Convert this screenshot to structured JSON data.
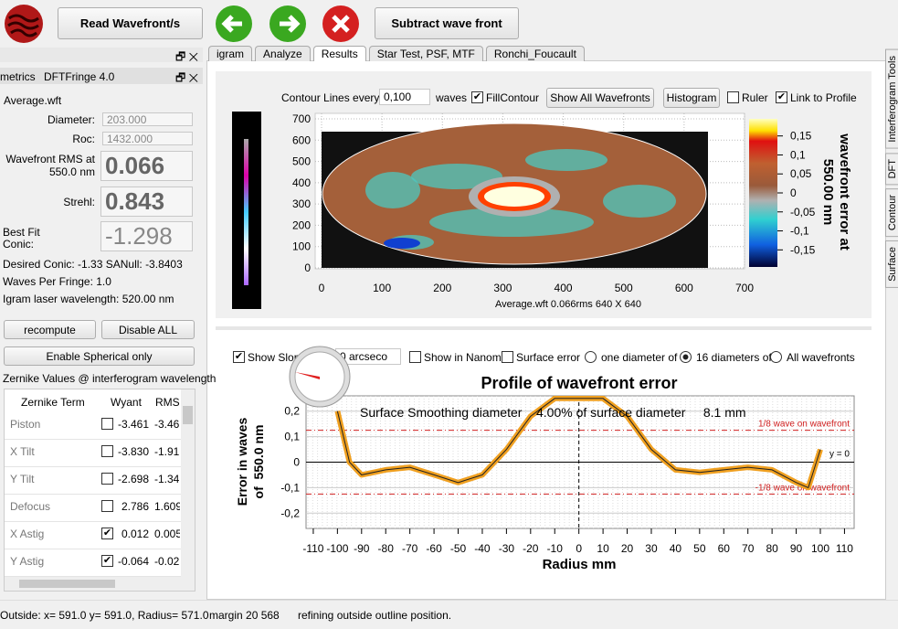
{
  "toolbar": {
    "read_button": "Read Wavefront/s",
    "subtract_button": "Subtract wave front"
  },
  "tabs": [
    "igram",
    "Analyze",
    "Results",
    "Star Test, PSF, MTF",
    "Ronchi_Foucault"
  ],
  "selected_tab": 2,
  "side_tabs": [
    "Interferogram Tools",
    "DFT",
    "Contour",
    "Surface"
  ],
  "left_panel": {
    "dock_titles": [
      "metrics",
      "DFTFringe 4.0"
    ],
    "file": "Average.wft",
    "diameter_label": "Diameter:",
    "diameter": "203.000",
    "roc_label": "Roc:",
    "roc": "1432.000",
    "rms_label": [
      "Wavefront RMS at",
      "550.0 nm"
    ],
    "rms": "0.066",
    "strehl_label": "Strehl:",
    "strehl": "0.843",
    "conic_label": [
      "Best Fit",
      "Conic:"
    ],
    "conic": "-1.298",
    "desired": "Desired Conic: -1.33 SANull: -3.8403",
    "waves_per_fringe": "Waves Per Fringe: 1.0",
    "laser": "Igram laser wavelength: 520.00 nm",
    "recompute": "recompute",
    "disable_all": "Disable ALL",
    "enable_spherical": "Enable Spherical only",
    "zernike_title": "Zernike Values @ interferogram wavelength",
    "zernike_header": [
      "Zernike Term",
      "Wyant",
      "RMS"
    ],
    "zernike_rows": [
      [
        "Piston",
        "-3.461",
        "-3.46",
        false
      ],
      [
        "X Tilt",
        "-3.830",
        "-1.91",
        false
      ],
      [
        "Y Tilt",
        "-2.698",
        "-1.34",
        false
      ],
      [
        "Defocus",
        "2.786",
        "1.609",
        false
      ],
      [
        "X Astig",
        "0.012",
        "0.005",
        true
      ],
      [
        "Y Astig",
        "-0.064",
        "-0.02",
        true
      ]
    ]
  },
  "contour": {
    "controls": {
      "lines_every": "Contour Lines every",
      "step": "0,100",
      "waves": "waves",
      "fill": "FillContour",
      "fill_checked": true,
      "show_all": "Show All Wavefronts",
      "histogram": "Histogram",
      "ruler": "Ruler",
      "ruler_checked": false,
      "link": "Link to Profile",
      "link_checked": true
    },
    "xlim": [
      0,
      700
    ],
    "ylim": [
      0,
      700
    ],
    "xticks": [
      0,
      100,
      200,
      300,
      400,
      500,
      600,
      700
    ],
    "yticks": [
      0,
      100,
      200,
      300,
      400,
      500,
      600,
      700
    ],
    "caption": "Average.wft  0.066rms 640 X 640",
    "colorbar_lim": [
      -0.195,
      0.195
    ],
    "colorbar_ticks": [
      {
        "value": 0.15,
        "label": "0,15"
      },
      {
        "value": 0.1,
        "label": "0,1"
      },
      {
        "value": 0.05,
        "label": "0,05"
      },
      {
        "value": 0,
        "label": "0"
      },
      {
        "value": -0.05,
        "label": "-0,05"
      },
      {
        "value": -0.1,
        "label": "-0,1"
      },
      {
        "value": -0.15,
        "label": "-0,15"
      }
    ],
    "colorbar_label": [
      "wavefront error at",
      "550.00 nm"
    ]
  },
  "profile": {
    "controls": {
      "show_slope": "Show Slop",
      "slope_checked": true,
      "arcsec": "0 arcseco",
      "nanometers": "Show in Nanome",
      "nanometers_checked": false,
      "surface": "Surface error",
      "surface_checked": false,
      "radios": [
        "one diameter of",
        "16 diameters of",
        "All wavefronts"
      ],
      "radio_selected": 1
    },
    "title": "Profile of wavefront error",
    "annotation": "Surface Smoothing diameter    4.00% of surface diameter     8.1 mm",
    "ref_lines": [
      {
        "value": 0.125,
        "label": "1/8 wave on wavefront"
      },
      {
        "value": -0.125,
        "label": "-1/8 wave on wavefront"
      }
    ],
    "zero_label": "y = 0",
    "ylabel": [
      "Error in waves",
      "of  550.0 nm"
    ],
    "xlabel": "Radius mm",
    "xlim": [
      -113,
      114
    ],
    "ylim": [
      -0.26,
      0.26
    ],
    "xticks": [
      -110,
      -100,
      -90,
      -80,
      -70,
      -60,
      -50,
      -40,
      -30,
      -20,
      -10,
      0,
      10,
      20,
      30,
      40,
      50,
      60,
      70,
      80,
      90,
      100,
      110
    ],
    "yticks": [
      {
        "value": -0.2,
        "label": "-0,2"
      },
      {
        "value": -0.1,
        "label": "-0,1"
      },
      0,
      {
        "value": 0.1,
        "label": "0,1"
      },
      {
        "value": 0.2,
        "label": "0,2"
      }
    ],
    "x": [
      -100,
      -95,
      -90,
      -80,
      -70,
      -60,
      -50,
      -40,
      -30,
      -20,
      -10,
      0,
      10,
      20,
      30,
      40,
      50,
      60,
      70,
      80,
      90,
      95,
      100
    ],
    "values": [
      0.2,
      0.0,
      -0.05,
      -0.03,
      -0.02,
      -0.05,
      -0.08,
      -0.05,
      0.05,
      0.18,
      0.25,
      0.25,
      0.25,
      0.18,
      0.05,
      -0.03,
      -0.04,
      -0.03,
      -0.02,
      -0.03,
      -0.08,
      -0.1,
      0.05
    ],
    "color": "#f0a020"
  },
  "status": [
    "Outside: x= 591.0 y= 591.0, Radius=  571.0",
    "margin 20 568",
    "refining outside outline position."
  ]
}
